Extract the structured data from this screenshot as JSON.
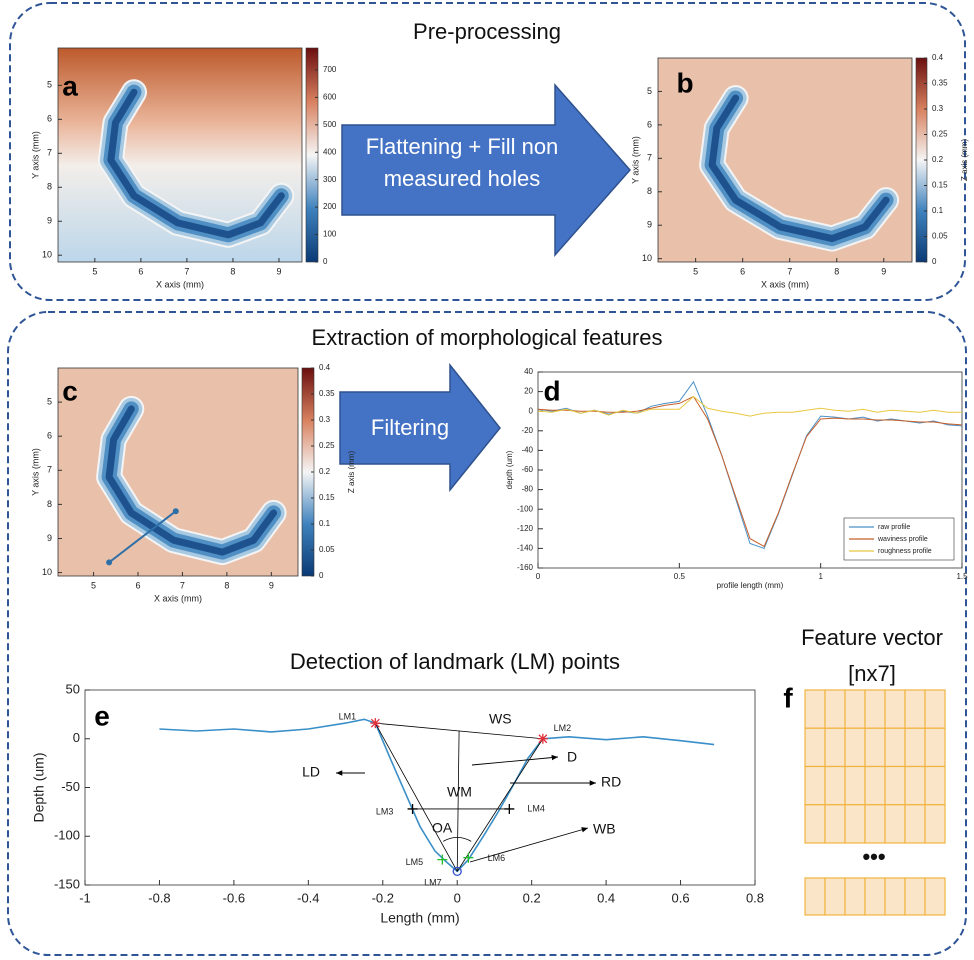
{
  "sections": {
    "preprocessing": "Pre-processing",
    "extraction": "Extraction of morphological features",
    "landmarks": "Detection of landmark (LM) points"
  },
  "arrows": {
    "flattening": [
      "Flattening + Fill non",
      "measured holes"
    ],
    "filtering": "Filtering"
  },
  "feature_vector": {
    "title": "Feature vector",
    "size": "[nx7]",
    "letter": "f",
    "ellipsis": "•••"
  },
  "chart_data": [
    {
      "type": "heatmap",
      "letter": "a",
      "xlabel": "X axis (mm)",
      "ylabel": "Y axis (mm)",
      "xlim": [
        4.2,
        9.5
      ],
      "ylim": [
        3.9,
        10.2
      ],
      "y_reversed": true,
      "xticks": [
        5,
        6,
        7,
        8,
        9
      ],
      "yticks": [
        5,
        6,
        7,
        8,
        9,
        10
      ],
      "colormap": [
        "#0b3a75",
        "#3f82bd",
        "#f5f5f5",
        "#d8815f",
        "#6b0f0f"
      ],
      "clim": [
        0,
        780
      ],
      "cticks": [
        0,
        100,
        200,
        300,
        400,
        500,
        600,
        700
      ]
    },
    {
      "type": "heatmap",
      "letter": "b",
      "xlabel": "X axis (mm)",
      "ylabel": "Y axis (mm)",
      "clabel": "Z axis (mm)",
      "xlim": [
        4.2,
        9.6
      ],
      "ylim": [
        4,
        10.1
      ],
      "y_reversed": true,
      "xticks": [
        5,
        6,
        7,
        8,
        9
      ],
      "yticks": [
        5,
        6,
        7,
        8,
        9,
        10
      ],
      "colormap": [
        "#0b3a75",
        "#3f82bd",
        "#f5f5f5",
        "#d8815f",
        "#6b0f0f"
      ],
      "clim": [
        0,
        0.4
      ],
      "cticks": [
        0,
        0.05,
        0.1,
        0.15,
        0.2,
        0.25,
        0.3,
        0.35,
        0.4
      ]
    },
    {
      "type": "heatmap",
      "letter": "c",
      "xlabel": "X axis (mm)",
      "ylabel": "Y axis (mm)",
      "clabel": "Z axis (mm)",
      "xlim": [
        4.2,
        9.6
      ],
      "ylim": [
        4,
        10.1
      ],
      "y_reversed": true,
      "xticks": [
        5,
        6,
        7,
        8,
        9
      ],
      "yticks": [
        5,
        6,
        7,
        8,
        9,
        10
      ],
      "colormap": [
        "#0b3a75",
        "#3f82bd",
        "#f5f5f5",
        "#d8815f",
        "#6b0f0f"
      ],
      "clim": [
        0,
        0.4
      ],
      "cticks": [
        0,
        0.05,
        0.1,
        0.15,
        0.2,
        0.25,
        0.3,
        0.35,
        0.4
      ],
      "profile_line": {
        "x": [
          5.35,
          6.85
        ],
        "y": [
          9.7,
          8.2
        ],
        "color": "#2f6fa8"
      }
    },
    {
      "type": "line",
      "letter": "d",
      "xlabel": "profile length (mm)",
      "ylabel": "depth (um)",
      "xlim": [
        0,
        1.5
      ],
      "ylim": [
        -160,
        40
      ],
      "xticks": [
        0,
        0.5,
        1,
        1.5
      ],
      "yticks": [
        -160,
        -140,
        -120,
        -100,
        -80,
        -60,
        -40,
        -20,
        0,
        20,
        40
      ],
      "legend": "lower right",
      "x": [
        0,
        0.05,
        0.1,
        0.15,
        0.2,
        0.25,
        0.3,
        0.35,
        0.4,
        0.45,
        0.5,
        0.55,
        0.6,
        0.65,
        0.7,
        0.75,
        0.8,
        0.85,
        0.9,
        0.95,
        1,
        1.05,
        1.1,
        1.15,
        1.2,
        1.25,
        1.3,
        1.35,
        1.4,
        1.45,
        1.5
      ],
      "series": [
        {
          "name": "raw profile",
          "color": "#4a90c8",
          "values": [
            2,
            0,
            3,
            -2,
            1,
            -3,
            0,
            -2,
            5,
            8,
            10,
            30,
            -5,
            -45,
            -90,
            -135,
            -140,
            -105,
            -65,
            -25,
            -5,
            -6,
            -8,
            -6,
            -10,
            -8,
            -10,
            -12,
            -10,
            -14,
            -15
          ]
        },
        {
          "name": "waviness profile",
          "color": "#c8602a",
          "values": [
            2,
            1,
            1,
            0,
            0,
            -1,
            -1,
            0,
            3,
            6,
            8,
            15,
            -8,
            -45,
            -88,
            -130,
            -138,
            -104,
            -64,
            -26,
            -8,
            -7,
            -8,
            -8,
            -9,
            -9,
            -10,
            -11,
            -11,
            -13,
            -14
          ]
        },
        {
          "name": "roughness profile",
          "color": "#e8c840",
          "values": [
            0,
            -1,
            2,
            -2,
            1,
            -4,
            1,
            -2,
            2,
            2,
            2,
            15,
            3,
            0,
            -2,
            -5,
            -2,
            -1,
            -1,
            1,
            3,
            1,
            0,
            2,
            -1,
            1,
            0,
            -1,
            1,
            -1,
            -1
          ]
        }
      ]
    },
    {
      "type": "line",
      "letter": "e",
      "xlabel": "Length (mm)",
      "ylabel": "Depth (um)",
      "xlim": [
        -1,
        0.8
      ],
      "ylim": [
        -150,
        50
      ],
      "xticks": [
        -1,
        -0.8,
        -0.6,
        -0.4,
        -0.2,
        0,
        0.2,
        0.4,
        0.6,
        0.8
      ],
      "yticks": [
        -150,
        -100,
        -50,
        0,
        50
      ],
      "x": [
        -0.8,
        -0.7,
        -0.6,
        -0.5,
        -0.4,
        -0.3,
        -0.25,
        -0.22,
        -0.18,
        -0.14,
        -0.1,
        -0.06,
        -0.03,
        0,
        0.03,
        0.07,
        0.11,
        0.15,
        0.19,
        0.23,
        0.3,
        0.4,
        0.5,
        0.6,
        0.69
      ],
      "series": [
        {
          "color": "#3a8fc8",
          "values": [
            10,
            8,
            10,
            7,
            10,
            16,
            20,
            16,
            -20,
            -55,
            -90,
            -115,
            -126,
            -136,
            -124,
            -100,
            -75,
            -48,
            -20,
            0,
            2,
            -1,
            2,
            -2,
            -6
          ]
        }
      ],
      "landmarks": [
        {
          "label": "LM1",
          "x": -0.22,
          "y": 16,
          "color": "#e0303a",
          "marker": "asterisk"
        },
        {
          "label": "LM2",
          "x": 0.23,
          "y": 0,
          "color": "#e0303a",
          "marker": "asterisk"
        },
        {
          "label": "LM3",
          "x": -0.12,
          "y": -72,
          "color": "#000000",
          "marker": "plus"
        },
        {
          "label": "LM4",
          "x": 0.14,
          "y": -72,
          "color": "#000000",
          "marker": "plus"
        },
        {
          "label": "LM5",
          "x": -0.04,
          "y": -124,
          "color": "#22c02a",
          "marker": "plus"
        },
        {
          "label": "LM6",
          "x": 0.03,
          "y": -122,
          "color": "#22c02a",
          "marker": "plus"
        },
        {
          "label": "LM7",
          "x": 0,
          "y": -136,
          "color": "#3050d0",
          "marker": "circle"
        }
      ],
      "annotations": [
        "WS",
        "D",
        "LD",
        "RD",
        "WM",
        "OA",
        "WB"
      ]
    }
  ]
}
